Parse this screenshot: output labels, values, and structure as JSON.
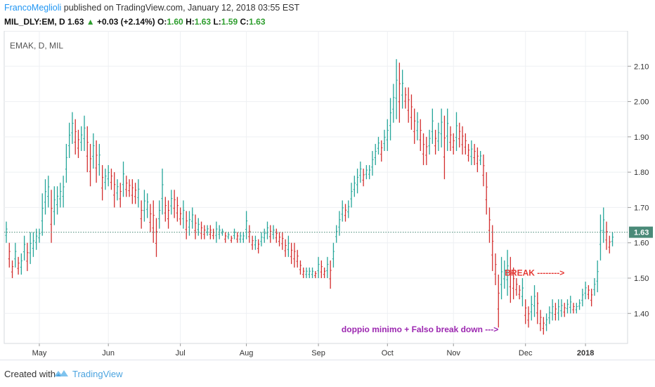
{
  "header": {
    "author": "FrancoMeglioli",
    "published": " published on TradingView.com, January 12, 2018 03:55 EST"
  },
  "ohlc": {
    "symbol": "MIL_DLY:EM, D",
    "last": "1.63",
    "change": "+0.03 (+2.14%)",
    "o_label": "O:",
    "o": "1.60",
    "h_label": "H:",
    "h": "1.63",
    "l_label": "L:",
    "l": "1.59",
    "c_label": "C:",
    "c": "1.63"
  },
  "footer": {
    "created_with": "Created with",
    "brand": "TradingView"
  },
  "colors": {
    "up": "#26a69a",
    "down": "#d32f2f",
    "grid": "#eef0f3",
    "price_tag": "#4a8a78",
    "annotation_red": "#e53935",
    "annotation_purple": "#9c27b0"
  },
  "chart_data": {
    "type": "ohlc-bar",
    "title": "EMAK, D, MIL",
    "y_ticks": [
      "2.10",
      "2.00",
      "1.90",
      "1.80",
      "1.70",
      "1.60",
      "1.50",
      "1.40"
    ],
    "ylim": [
      1.315,
      2.2
    ],
    "x_ticks": [
      "May",
      "Jun",
      "Jul",
      "Aug",
      "Sep",
      "Oct",
      "Nov",
      "Dec",
      "2018"
    ],
    "current_price": "1.63",
    "series": [
      [
        1.66,
        1.6
      ],
      [
        1.6,
        1.53
      ],
      [
        1.55,
        1.5
      ],
      [
        1.6,
        1.53
      ],
      [
        1.56,
        1.51
      ],
      [
        1.57,
        1.51
      ],
      [
        1.62,
        1.55
      ],
      [
        1.6,
        1.52
      ],
      [
        1.63,
        1.54
      ],
      [
        1.63,
        1.56
      ],
      [
        1.64,
        1.58
      ],
      [
        1.64,
        1.6
      ],
      [
        1.74,
        1.62
      ],
      [
        1.78,
        1.68
      ],
      [
        1.79,
        1.7
      ],
      [
        1.75,
        1.6
      ],
      [
        1.76,
        1.65
      ],
      [
        1.76,
        1.68
      ],
      [
        1.77,
        1.7
      ],
      [
        1.79,
        1.7
      ],
      [
        1.88,
        1.77
      ],
      [
        1.94,
        1.84
      ],
      [
        1.97,
        1.88
      ],
      [
        1.95,
        1.85
      ],
      [
        1.92,
        1.84
      ],
      [
        1.93,
        1.86
      ],
      [
        1.96,
        1.86
      ],
      [
        1.93,
        1.8
      ],
      [
        1.88,
        1.76
      ],
      [
        1.91,
        1.81
      ],
      [
        1.89,
        1.77
      ],
      [
        1.88,
        1.79
      ],
      [
        1.82,
        1.72
      ],
      [
        1.81,
        1.75
      ],
      [
        1.82,
        1.76
      ],
      [
        1.81,
        1.75
      ],
      [
        1.8,
        1.7
      ],
      [
        1.78,
        1.72
      ],
      [
        1.77,
        1.7
      ],
      [
        1.83,
        1.73
      ],
      [
        1.79,
        1.73
      ],
      [
        1.78,
        1.73
      ],
      [
        1.78,
        1.71
      ],
      [
        1.77,
        1.71
      ],
      [
        1.78,
        1.7
      ],
      [
        1.72,
        1.64
      ],
      [
        1.75,
        1.66
      ],
      [
        1.74,
        1.67
      ],
      [
        1.71,
        1.63
      ],
      [
        1.72,
        1.6
      ],
      [
        1.67,
        1.56
      ],
      [
        1.72,
        1.64
      ],
      [
        1.81,
        1.68
      ],
      [
        1.73,
        1.66
      ],
      [
        1.72,
        1.64
      ],
      [
        1.75,
        1.68
      ],
      [
        1.75,
        1.67
      ],
      [
        1.73,
        1.66
      ],
      [
        1.7,
        1.65
      ],
      [
        1.72,
        1.64
      ],
      [
        1.69,
        1.61
      ],
      [
        1.69,
        1.62
      ],
      [
        1.7,
        1.64
      ],
      [
        1.68,
        1.61
      ],
      [
        1.67,
        1.62
      ],
      [
        1.66,
        1.61
      ],
      [
        1.65,
        1.61
      ],
      [
        1.65,
        1.62
      ],
      [
        1.65,
        1.61
      ],
      [
        1.64,
        1.61
      ],
      [
        1.66,
        1.6
      ],
      [
        1.65,
        1.61
      ],
      [
        1.64,
        1.62
      ],
      [
        1.63,
        1.6
      ],
      [
        1.63,
        1.61
      ],
      [
        1.62,
        1.6
      ],
      [
        1.64,
        1.61
      ],
      [
        1.63,
        1.6
      ],
      [
        1.63,
        1.6
      ],
      [
        1.63,
        1.6
      ],
      [
        1.69,
        1.61
      ],
      [
        1.65,
        1.6
      ],
      [
        1.62,
        1.58
      ],
      [
        1.62,
        1.58
      ],
      [
        1.61,
        1.57
      ],
      [
        1.63,
        1.59
      ],
      [
        1.64,
        1.6
      ],
      [
        1.66,
        1.61
      ],
      [
        1.65,
        1.6
      ],
      [
        1.65,
        1.61
      ],
      [
        1.64,
        1.6
      ],
      [
        1.63,
        1.59
      ],
      [
        1.63,
        1.58
      ],
      [
        1.61,
        1.56
      ],
      [
        1.62,
        1.56
      ],
      [
        1.6,
        1.54
      ],
      [
        1.6,
        1.53
      ],
      [
        1.58,
        1.53
      ],
      [
        1.55,
        1.51
      ],
      [
        1.53,
        1.5
      ],
      [
        1.53,
        1.5
      ],
      [
        1.53,
        1.5
      ],
      [
        1.53,
        1.5
      ],
      [
        1.52,
        1.5
      ],
      [
        1.56,
        1.5
      ],
      [
        1.55,
        1.5
      ],
      [
        1.53,
        1.5
      ],
      [
        1.56,
        1.5
      ],
      [
        1.55,
        1.47
      ],
      [
        1.6,
        1.53
      ],
      [
        1.65,
        1.6
      ],
      [
        1.69,
        1.62
      ],
      [
        1.72,
        1.66
      ],
      [
        1.71,
        1.66
      ],
      [
        1.72,
        1.67
      ],
      [
        1.77,
        1.7
      ],
      [
        1.79,
        1.73
      ],
      [
        1.81,
        1.74
      ],
      [
        1.83,
        1.77
      ],
      [
        1.81,
        1.76
      ],
      [
        1.82,
        1.78
      ],
      [
        1.82,
        1.78
      ],
      [
        1.86,
        1.79
      ],
      [
        1.88,
        1.82
      ],
      [
        1.9,
        1.85
      ],
      [
        1.89,
        1.83
      ],
      [
        1.92,
        1.86
      ],
      [
        1.95,
        1.86
      ],
      [
        2.01,
        1.89
      ],
      [
        2.05,
        1.94
      ],
      [
        2.12,
        1.95
      ],
      [
        2.11,
        1.94
      ],
      [
        2.09,
        1.98
      ],
      [
        2.04,
        1.98
      ],
      [
        2.04,
        1.94
      ],
      [
        2.02,
        1.92
      ],
      [
        1.98,
        1.88
      ],
      [
        1.97,
        1.89
      ],
      [
        1.95,
        1.86
      ],
      [
        1.91,
        1.82
      ],
      [
        1.9,
        1.82
      ],
      [
        1.92,
        1.85
      ],
      [
        1.98,
        1.88
      ],
      [
        1.92,
        1.85
      ],
      [
        1.94,
        1.86
      ],
      [
        1.98,
        1.87
      ],
      [
        1.96,
        1.78
      ],
      [
        1.98,
        1.86
      ],
      [
        1.93,
        1.86
      ],
      [
        1.91,
        1.85
      ],
      [
        1.97,
        1.86
      ],
      [
        1.94,
        1.87
      ],
      [
        1.93,
        1.85
      ],
      [
        1.91,
        1.85
      ],
      [
        1.88,
        1.83
      ],
      [
        1.89,
        1.82
      ],
      [
        1.88,
        1.82
      ],
      [
        1.87,
        1.8
      ],
      [
        1.86,
        1.82
      ],
      [
        1.85,
        1.76
      ],
      [
        1.8,
        1.68
      ],
      [
        1.7,
        1.6
      ],
      [
        1.65,
        1.52
      ],
      [
        1.57,
        1.48
      ],
      [
        1.51,
        1.36
      ],
      [
        1.56,
        1.44
      ],
      [
        1.55,
        1.47
      ],
      [
        1.58,
        1.45
      ],
      [
        1.56,
        1.43
      ],
      [
        1.53,
        1.44
      ],
      [
        1.5,
        1.45
      ],
      [
        1.48,
        1.44
      ],
      [
        1.5,
        1.42
      ],
      [
        1.44,
        1.37
      ],
      [
        1.42,
        1.36
      ],
      [
        1.45,
        1.38
      ],
      [
        1.48,
        1.39
      ],
      [
        1.46,
        1.37
      ],
      [
        1.41,
        1.35
      ],
      [
        1.39,
        1.34
      ],
      [
        1.4,
        1.35
      ],
      [
        1.42,
        1.37
      ],
      [
        1.44,
        1.38
      ],
      [
        1.43,
        1.38
      ],
      [
        1.44,
        1.38
      ],
      [
        1.44,
        1.39
      ],
      [
        1.43,
        1.39
      ],
      [
        1.44,
        1.4
      ],
      [
        1.45,
        1.4
      ],
      [
        1.43,
        1.4
      ],
      [
        1.43,
        1.4
      ],
      [
        1.44,
        1.41
      ],
      [
        1.47,
        1.42
      ],
      [
        1.49,
        1.44
      ],
      [
        1.48,
        1.44
      ],
      [
        1.47,
        1.42
      ],
      [
        1.5,
        1.45
      ],
      [
        1.55,
        1.46
      ],
      [
        1.68,
        1.55
      ],
      [
        1.7,
        1.6
      ],
      [
        1.66,
        1.58
      ],
      [
        1.62,
        1.57
      ],
      [
        1.63,
        1.59
      ]
    ],
    "annotations": [
      {
        "text": "BREAK -------->",
        "color": "red",
        "x_index": 186,
        "price": 1.515
      },
      {
        "text": "doppio minimo + Falso break down --->",
        "color": "purple",
        "x_index": 164,
        "price": 1.355
      }
    ]
  }
}
